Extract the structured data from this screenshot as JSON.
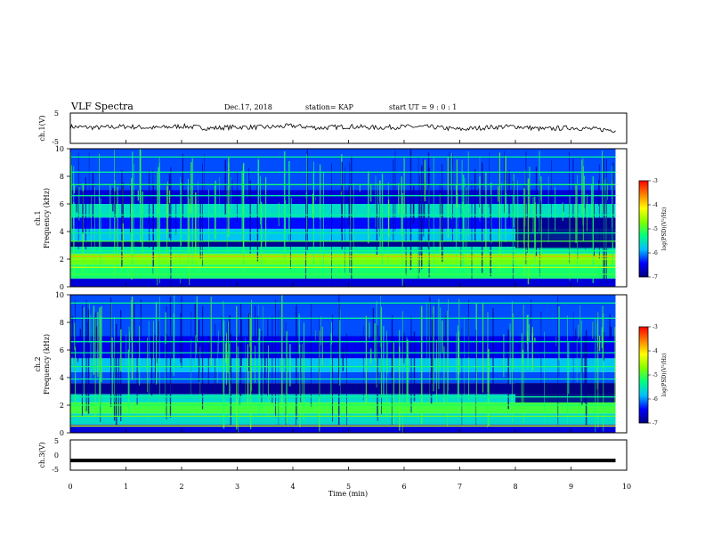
{
  "header": {
    "title": "VLF Spectra",
    "date": "Dec.17, 2018",
    "station": "station= KAP",
    "start": "start  UT =  9 : 0  : 1"
  },
  "colorbar": {
    "label": "log(PSD)(V²/Hz)",
    "ticks": [
      -3,
      -4,
      -5,
      -6,
      -7
    ],
    "colormap": [
      "#00007f",
      "#0000ff",
      "#00bfff",
      "#00ff80",
      "#80ff00",
      "#ffff00",
      "#ff8000",
      "#ff0000",
      "#ffffff"
    ]
  },
  "chart_data": [
    {
      "type": "line",
      "panel": "ch1_waveform",
      "ylabel": "ch.1(V)",
      "ylim": [
        -5,
        5
      ],
      "yticks": [
        "5",
        "-5"
      ],
      "xlim": [
        0,
        10
      ],
      "series": [
        {
          "x": [
            0,
            0.5,
            1,
            1.5,
            2,
            2.5,
            3,
            3.5,
            4,
            4.5,
            5,
            5.5,
            6,
            6.5,
            7,
            7.5,
            8,
            8.5,
            9,
            9.5,
            9.8
          ],
          "values": [
            0.5,
            0.2,
            0.6,
            0.1,
            0.7,
            0.0,
            0.4,
            0.3,
            0.8,
            0.1,
            0.6,
            0.2,
            0.5,
            0.4,
            -0.4,
            0.3,
            0.6,
            -0.3,
            0.2,
            -0.4,
            -0.6
          ]
        }
      ]
    },
    {
      "type": "heatmap",
      "panel": "ch1_spectrogram",
      "ylabel": "ch.1 Frequency (kHz)",
      "ylim": [
        0,
        10
      ],
      "yticks": [
        "0",
        "2",
        "4",
        "6",
        "8",
        "10"
      ],
      "xlim": [
        0,
        10
      ],
      "colorbar_range": [
        -7,
        -3
      ],
      "bands_khz": [
        {
          "from": 0.0,
          "to": 0.6,
          "level": -6.6
        },
        {
          "from": 0.6,
          "to": 1.6,
          "level": -5.2
        },
        {
          "from": 1.6,
          "to": 2.4,
          "level": -4.8
        },
        {
          "from": 2.4,
          "to": 2.9,
          "level": -5.5
        },
        {
          "from": 2.9,
          "to": 3.3,
          "level": -6.9
        },
        {
          "from": 3.3,
          "to": 4.2,
          "level": -5.8
        },
        {
          "from": 4.2,
          "to": 5.0,
          "level": -6.4
        },
        {
          "from": 5.0,
          "to": 6.0,
          "level": -5.6
        },
        {
          "from": 6.0,
          "to": 7.0,
          "level": -6.6
        },
        {
          "from": 7.0,
          "to": 10.0,
          "level": -6.2
        }
      ],
      "lines_khz": [
        {
          "f": 0.9,
          "level": -5.0
        },
        {
          "f": 1.4,
          "level": -4.4
        },
        {
          "f": 2.0,
          "level": -4.6
        },
        {
          "f": 2.2,
          "level": -3.8
        },
        {
          "f": 2.6,
          "level": -5.2
        },
        {
          "f": 3.3,
          "level": -5.0
        },
        {
          "f": 3.9,
          "level": -5.4
        },
        {
          "f": 5.2,
          "level": -5.4
        },
        {
          "f": 6.6,
          "level": -5.4
        },
        {
          "f": 7.4,
          "level": -5.2
        },
        {
          "f": 8.3,
          "level": -5.4
        },
        {
          "f": 9.4,
          "level": -5.4
        }
      ],
      "dark_region": {
        "x_from": 8.0,
        "x_to": 9.8,
        "f_from": 2.8,
        "f_to": 5.0,
        "level": -7.0
      }
    },
    {
      "type": "heatmap",
      "panel": "ch2_spectrogram",
      "ylabel": "ch.2 Frequency (kHz)",
      "ylim": [
        0,
        10
      ],
      "yticks": [
        "0",
        "2",
        "4",
        "6",
        "8",
        "10"
      ],
      "xlim": [
        0,
        10
      ],
      "colorbar_range": [
        -7,
        -3
      ],
      "bands_khz": [
        {
          "from": 0.0,
          "to": 0.6,
          "level": -6.6
        },
        {
          "from": 0.6,
          "to": 1.4,
          "level": -5.6
        },
        {
          "from": 1.4,
          "to": 2.2,
          "level": -5.0
        },
        {
          "from": 2.2,
          "to": 2.8,
          "level": -5.6
        },
        {
          "from": 2.8,
          "to": 3.6,
          "level": -6.9
        },
        {
          "from": 3.6,
          "to": 4.4,
          "level": -6.2
        },
        {
          "from": 4.4,
          "to": 5.4,
          "level": -5.8
        },
        {
          "from": 5.4,
          "to": 7.0,
          "level": -6.5
        },
        {
          "from": 7.0,
          "to": 10.0,
          "level": -6.2
        }
      ],
      "lines_khz": [
        {
          "f": 0.5,
          "level": -4.4
        },
        {
          "f": 1.2,
          "level": -4.8
        },
        {
          "f": 2.0,
          "level": -5.2
        },
        {
          "f": 2.6,
          "level": -5.4
        },
        {
          "f": 3.9,
          "level": -5.4
        },
        {
          "f": 4.8,
          "level": -5.2
        },
        {
          "f": 5.8,
          "level": -5.4
        },
        {
          "f": 6.6,
          "level": -5.4
        },
        {
          "f": 8.3,
          "level": -5.4
        },
        {
          "f": 9.4,
          "level": -5.4
        }
      ],
      "dark_region": {
        "x_from": 8.0,
        "x_to": 9.8,
        "f_from": 2.2,
        "f_to": 3.6,
        "level": -7.0
      }
    },
    {
      "type": "line",
      "panel": "ch3_waveform",
      "ylabel": "ch.3(V)",
      "ylim": [
        -5,
        5
      ],
      "yticks": [
        "5",
        "0",
        "-5"
      ],
      "xlabel": "Time (min)",
      "xlim": [
        0,
        10
      ],
      "xticks": [
        "0",
        "1",
        "2",
        "3",
        "4",
        "5",
        "6",
        "7",
        "8",
        "9",
        "10"
      ],
      "series": [
        {
          "x": [
            0,
            9.8
          ],
          "values": [
            -1.8,
            -1.8
          ]
        }
      ]
    }
  ]
}
